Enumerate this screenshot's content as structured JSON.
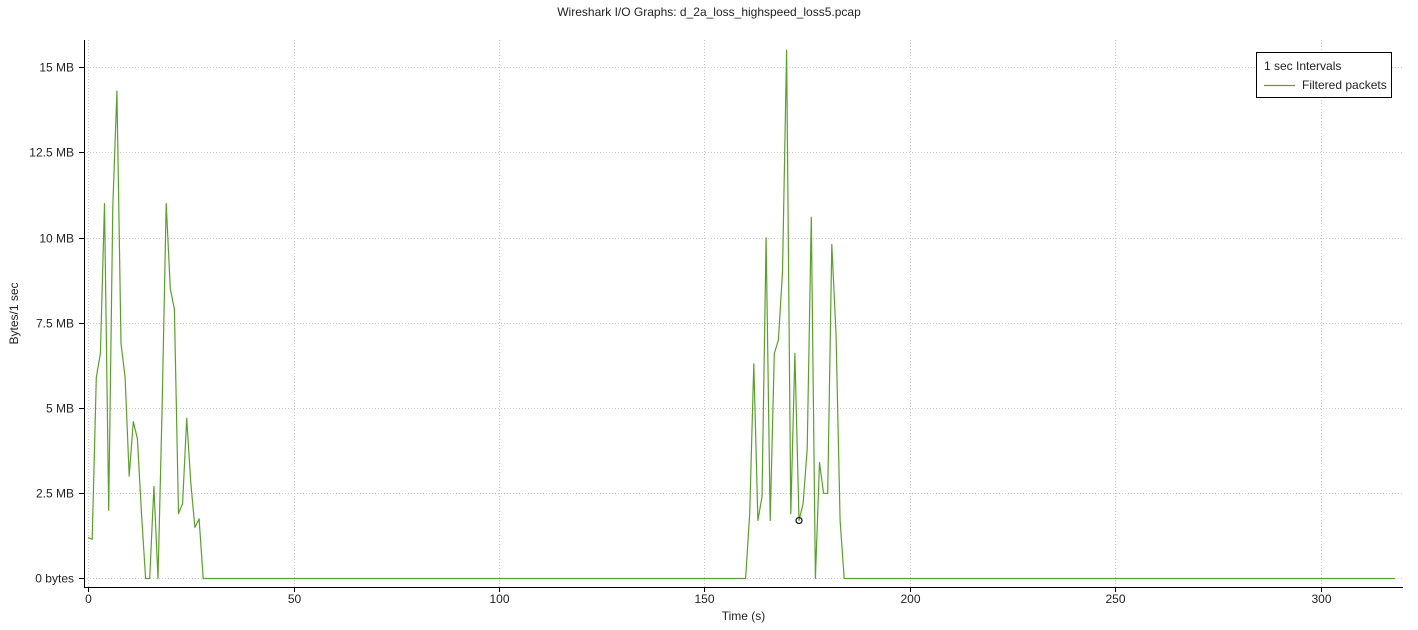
{
  "window": {
    "title": "Wireshark I/O Graphs: d_2a_loss_highspeed_loss5.pcap"
  },
  "colors": {
    "series": "#5aa02c",
    "marker": "#222222"
  },
  "chart_data": {
    "type": "line",
    "title": "Wireshark I/O Graphs: d_2a_loss_highspeed_loss5.pcap",
    "xlabel": "Time (s)",
    "ylabel": "Bytes/1 sec",
    "xlim": [
      -1,
      320
    ],
    "ylim": [
      -0.25,
      15.8
    ],
    "x_ticks": [
      0,
      50,
      100,
      150,
      200,
      250,
      300
    ],
    "x_tick_labels": [
      "0",
      "50",
      "100",
      "150",
      "200",
      "250",
      "300"
    ],
    "y_ticks": [
      0,
      2.5,
      5,
      7.5,
      10,
      12.5,
      15
    ],
    "y_tick_labels": [
      "0 bytes",
      "2.5 MB",
      "5 MB",
      "7.5 MB",
      "10 MB",
      "12.5 MB",
      "15 MB"
    ],
    "y_unit": "MB",
    "grid": true,
    "legend": {
      "placement": "top-right",
      "title": "1 sec Intervals",
      "entries": [
        "Filtered packets"
      ]
    },
    "marker_point": {
      "x": 173,
      "y": 1.7
    },
    "series": [
      {
        "name": "Filtered packets",
        "x": [
          0,
          1,
          2,
          3,
          4,
          5,
          6,
          7,
          8,
          9,
          10,
          11,
          12,
          13,
          14,
          15,
          16,
          17,
          18,
          19,
          20,
          21,
          22,
          23,
          24,
          25,
          26,
          27,
          28,
          29,
          160,
          161,
          162,
          163,
          164,
          165,
          166,
          167,
          168,
          169,
          170,
          171,
          172,
          173,
          174,
          175,
          176,
          177,
          178,
          179,
          180,
          181,
          182,
          183,
          184,
          185,
          318
        ],
        "values": [
          1.2,
          1.15,
          5.9,
          6.6,
          11.0,
          2.0,
          10.9,
          14.3,
          6.9,
          5.9,
          3.0,
          4.6,
          4.1,
          1.9,
          0,
          0,
          2.7,
          0,
          5.0,
          11.0,
          8.5,
          7.9,
          1.9,
          2.2,
          4.7,
          2.8,
          1.5,
          1.75,
          0,
          0,
          0,
          1.9,
          6.3,
          1.7,
          2.4,
          10.0,
          1.7,
          6.6,
          7.0,
          9.0,
          15.5,
          1.9,
          6.6,
          1.7,
          2.2,
          3.8,
          10.6,
          0,
          3.4,
          2.5,
          2.5,
          9.8,
          7.2,
          1.7,
          0,
          0,
          0
        ]
      }
    ]
  }
}
